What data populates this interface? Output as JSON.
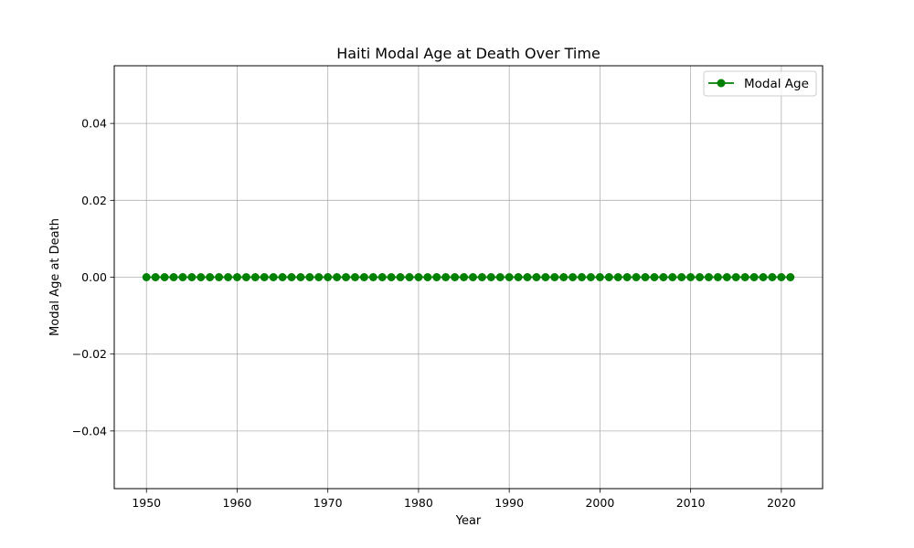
{
  "chart_data": {
    "type": "line",
    "title": "Haiti Modal Age at Death Over Time",
    "xlabel": "Year",
    "ylabel": "Modal Age at Death",
    "xlim": [
      1946.45,
      2024.55
    ],
    "ylim": [
      -0.055,
      0.055
    ],
    "x_ticks": [
      1950,
      1960,
      1970,
      1980,
      1990,
      2000,
      2010,
      2020
    ],
    "y_ticks": [
      -0.04,
      -0.02,
      0.0,
      0.02,
      0.04
    ],
    "y_tick_labels": [
      "−0.04",
      "−0.02",
      "0.00",
      "0.02",
      "0.04"
    ],
    "grid": true,
    "legend_position": "top-right",
    "series": [
      {
        "name": "Modal Age",
        "color": "#008000",
        "marker": "circle",
        "x": [
          1950,
          1951,
          1952,
          1953,
          1954,
          1955,
          1956,
          1957,
          1958,
          1959,
          1960,
          1961,
          1962,
          1963,
          1964,
          1965,
          1966,
          1967,
          1968,
          1969,
          1970,
          1971,
          1972,
          1973,
          1974,
          1975,
          1976,
          1977,
          1978,
          1979,
          1980,
          1981,
          1982,
          1983,
          1984,
          1985,
          1986,
          1987,
          1988,
          1989,
          1990,
          1991,
          1992,
          1993,
          1994,
          1995,
          1996,
          1997,
          1998,
          1999,
          2000,
          2001,
          2002,
          2003,
          2004,
          2005,
          2006,
          2007,
          2008,
          2009,
          2010,
          2011,
          2012,
          2013,
          2014,
          2015,
          2016,
          2017,
          2018,
          2019,
          2020,
          2021
        ],
        "y": [
          0,
          0,
          0,
          0,
          0,
          0,
          0,
          0,
          0,
          0,
          0,
          0,
          0,
          0,
          0,
          0,
          0,
          0,
          0,
          0,
          0,
          0,
          0,
          0,
          0,
          0,
          0,
          0,
          0,
          0,
          0,
          0,
          0,
          0,
          0,
          0,
          0,
          0,
          0,
          0,
          0,
          0,
          0,
          0,
          0,
          0,
          0,
          0,
          0,
          0,
          0,
          0,
          0,
          0,
          0,
          0,
          0,
          0,
          0,
          0,
          0,
          0,
          0,
          0,
          0,
          0,
          0,
          0,
          0,
          0,
          0,
          0
        ]
      }
    ]
  }
}
